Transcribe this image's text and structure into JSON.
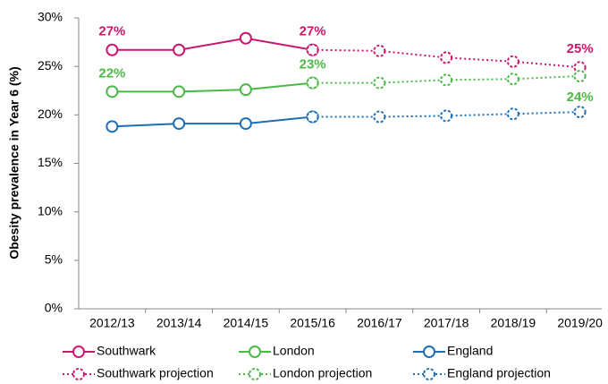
{
  "chart_data": {
    "type": "line",
    "y_label": "Obesity prevalence in Year 6 (%)",
    "categories": [
      "2012/13",
      "2013/14",
      "2014/15",
      "2015/16",
      "2016/17",
      "2017/18",
      "2018/19",
      "2019/20"
    ],
    "ylim": [
      0,
      30
    ],
    "yticks": [
      {
        "value": 0,
        "label": "0%"
      },
      {
        "value": 5,
        "label": "5%"
      },
      {
        "value": 10,
        "label": "10%"
      },
      {
        "value": 15,
        "label": "15%"
      },
      {
        "value": 20,
        "label": "20%"
      },
      {
        "value": 25,
        "label": "25%"
      },
      {
        "value": 30,
        "label": "30%"
      }
    ],
    "grid": false,
    "series": [
      {
        "name": "Southwark",
        "color": "#c8186e",
        "line_style": "solid",
        "values": [
          26.7,
          26.7,
          27.9,
          26.7,
          null,
          null,
          null,
          null
        ],
        "value_labels": [
          "27%",
          null,
          null,
          "27%",
          null,
          null,
          null,
          null
        ]
      },
      {
        "name": "London",
        "color": "#4cb848",
        "line_style": "solid",
        "values": [
          22.4,
          22.4,
          22.6,
          23.3,
          null,
          null,
          null,
          null
        ],
        "value_labels": [
          "22%",
          null,
          null,
          "23%",
          null,
          null,
          null,
          null
        ]
      },
      {
        "name": "England",
        "color": "#1f6fb5",
        "line_style": "solid",
        "values": [
          18.8,
          19.1,
          19.1,
          19.8,
          null,
          null,
          null,
          null
        ]
      },
      {
        "name": "Southwark projection",
        "color": "#c8186e",
        "line_style": "dotted",
        "values": [
          null,
          null,
          null,
          26.7,
          26.6,
          25.9,
          25.5,
          24.9
        ],
        "value_labels": [
          null,
          null,
          null,
          null,
          null,
          null,
          null,
          "25%"
        ]
      },
      {
        "name": "London projection",
        "color": "#4cb848",
        "line_style": "dotted",
        "values": [
          null,
          null,
          null,
          23.3,
          23.3,
          23.6,
          23.7,
          24.0
        ],
        "value_labels": [
          null,
          null,
          null,
          null,
          null,
          null,
          null,
          "24%"
        ]
      },
      {
        "name": "England projection",
        "color": "#1f6fb5",
        "line_style": "dotted",
        "values": [
          null,
          null,
          null,
          19.8,
          19.8,
          19.9,
          20.1,
          20.3
        ]
      }
    ]
  }
}
